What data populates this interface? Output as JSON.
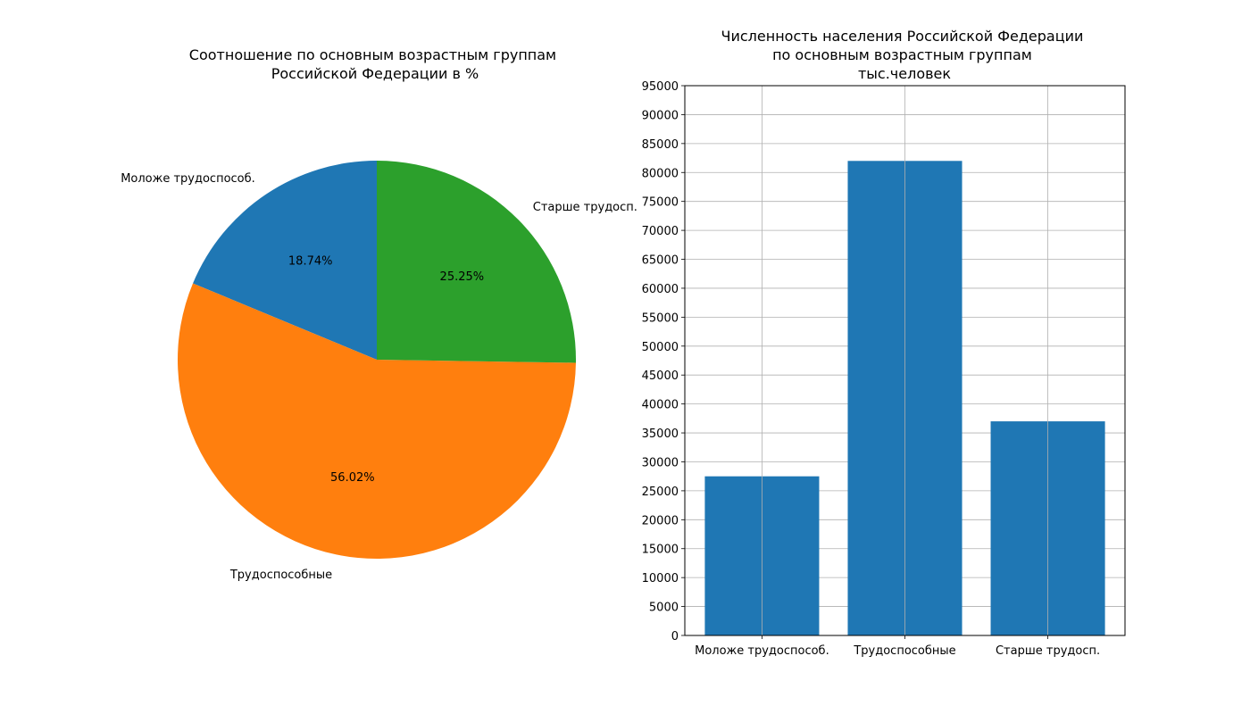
{
  "chart_data": [
    {
      "type": "pie",
      "title": [
        "Соотношение по основным возрастным группам",
        "Российской Федерации в %"
      ],
      "categories": [
        "Моложе трудоспособ.",
        "Трудоспособные",
        "Старше трудосп."
      ],
      "values": [
        18.74,
        56.02,
        25.25
      ],
      "value_labels": [
        "18.74%",
        "56.02%",
        "25.25%"
      ],
      "colors": [
        "#1f77b4",
        "#ff7f0e",
        "#2ca02c"
      ],
      "start_angle_deg": 90,
      "direction": "counterclockwise"
    },
    {
      "type": "bar",
      "title": [
        "Численность населения Российской Федерации",
        "по основным возрастным группам",
        "тыс.человек"
      ],
      "categories": [
        "Моложе трудоспособ.",
        "Трудоспособные",
        "Старше трудосп."
      ],
      "values": [
        27500,
        82000,
        37000
      ],
      "ylim": [
        0,
        95000
      ],
      "yticks": [
        0,
        5000,
        10000,
        15000,
        20000,
        25000,
        30000,
        35000,
        40000,
        45000,
        50000,
        55000,
        60000,
        65000,
        70000,
        75000,
        80000,
        85000,
        90000,
        95000
      ],
      "grid": true,
      "bar_color": "#1f77b4"
    }
  ]
}
